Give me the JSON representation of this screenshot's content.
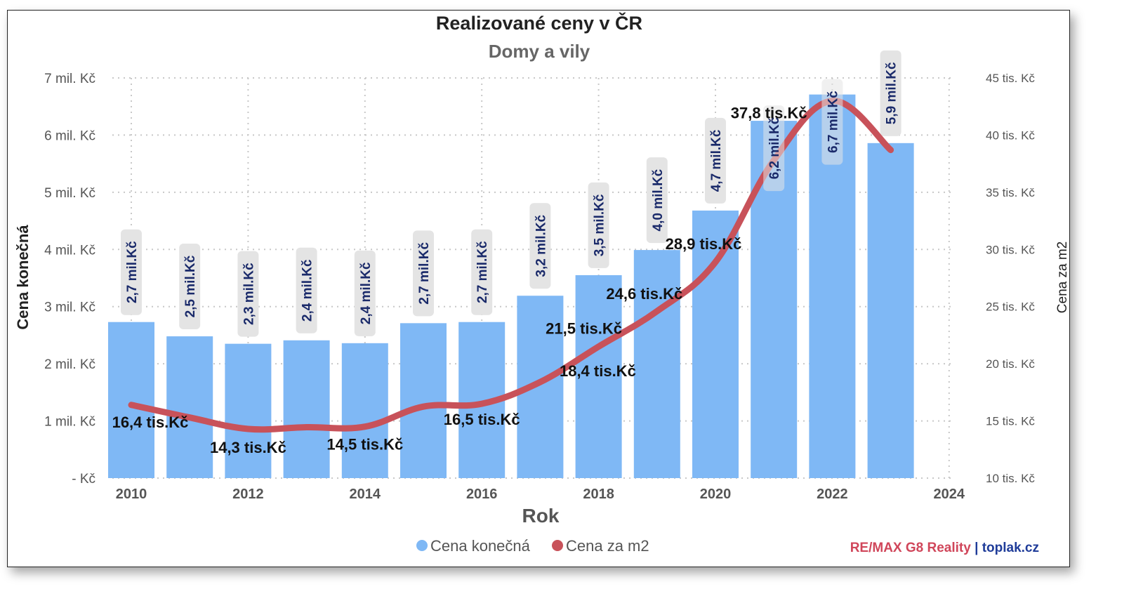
{
  "colors": {
    "bar": "#7fb8f5",
    "line": "#c8525a",
    "grid": "#c8c8c8",
    "label_box": "#e4e4e4",
    "credit_red": "#d0465a",
    "credit_blue": "#1f3c99"
  },
  "chart_data": {
    "type": "bar",
    "title": "Realizované ceny v ČR",
    "subtitle": "Domy a vily",
    "xlabel": "Rok",
    "ylabel": "Cena konečná",
    "y2label": "Cena za m2",
    "x_ticks": [
      "2010",
      "2012",
      "2014",
      "2016",
      "2018",
      "2020",
      "2022",
      "2024"
    ],
    "y_ticks": [
      "- Kč",
      "1 mil. Kč",
      "2 mil. Kč",
      "3 mil. Kč",
      "4 mil. Kč",
      "5 mil. Kč",
      "6 mil. Kč",
      "7 mil. Kč"
    ],
    "y2_ticks": [
      "10 tis. Kč",
      "15 tis. Kč",
      "20 tis. Kč",
      "25 tis. Kč",
      "30 tis. Kč",
      "35 tis. Kč",
      "40 tis. Kč",
      "45 tis. Kč"
    ],
    "ylim": [
      0,
      7000000
    ],
    "y2lim": [
      10000,
      45000
    ],
    "xlim": [
      2010,
      2024
    ],
    "grid": true,
    "legend_position": "bottom",
    "x": [
      2010,
      2011,
      2012,
      2013,
      2014,
      2015,
      2016,
      2017,
      2018,
      2019,
      2020,
      2021,
      2022,
      2023
    ],
    "series": [
      {
        "name": "Cena konečná",
        "kind": "bar",
        "values": [
          2730000,
          2480000,
          2350000,
          2410000,
          2360000,
          2710000,
          2730000,
          3190000,
          3550000,
          3990000,
          4680000,
          6250000,
          6710000,
          5860000
        ],
        "labels": [
          "2,7 mil.Kč",
          "2,5 mil.Kč",
          "2,3 mil.Kč",
          "2,4 mil.Kč",
          "2,4 mil.Kč",
          "2,7 mil.Kč",
          "2,7 mil.Kč",
          "3,2 mil.Kč",
          "3,5 mil.Kč",
          "4,0 mil.Kč",
          "4,7 mil.Kč",
          "6,2 mil.Kč",
          "6,7 mil.Kč",
          "5,9 mil.Kč"
        ]
      },
      {
        "name": "Cena za m2",
        "kind": "line",
        "values": [
          16400,
          15300,
          14300,
          14450,
          14500,
          16250,
          16500,
          18400,
          21500,
          24600,
          28900,
          37800,
          43000,
          38700
        ],
        "labels": [
          "16,4 tis.Kč",
          "",
          "14,3 tis.Kč",
          "",
          "14,5 tis.Kč",
          "",
          "16,5 tis.Kč",
          "18,4 tis.Kč",
          "21,5 tis.Kč",
          "24,6 tis.Kč",
          "28,9 tis.Kč",
          "37,8 tis.Kč",
          "",
          ""
        ]
      }
    ]
  },
  "credit": {
    "part1": "RE/",
    "part2": "MAX G8 Reality",
    "separator": " | ",
    "part3": "toplak.cz"
  }
}
